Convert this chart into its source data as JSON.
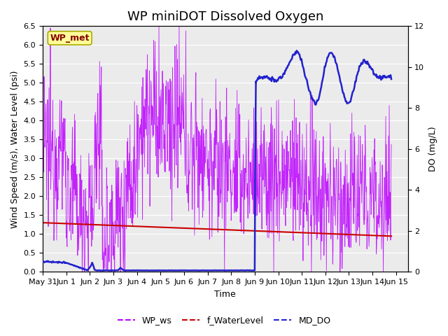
{
  "title": "WP miniDOT Dissolved Oxygen",
  "xlabel": "Time",
  "ylabel_left": "Wind Speed (m/s), Water Level (psi)",
  "ylabel_right": "DO (mg/L)",
  "xlim": [
    0,
    15.5
  ],
  "ylim_left": [
    0,
    6.5
  ],
  "ylim_right": [
    0,
    12
  ],
  "yticks_left": [
    0.0,
    0.5,
    1.0,
    1.5,
    2.0,
    2.5,
    3.0,
    3.5,
    4.0,
    4.5,
    5.0,
    5.5,
    6.0,
    6.5
  ],
  "yticks_right": [
    0,
    2,
    4,
    6,
    8,
    10,
    12
  ],
  "xtick_labels": [
    "May 31",
    "Jun 1",
    "Jun 2",
    "Jun 3",
    "Jun 4",
    "Jun 5",
    "Jun 6",
    "Jun 7",
    "Jun 8",
    "Jun 9",
    "Jun 10",
    "Jun 11",
    "Jun 12",
    "Jun 13",
    "Jun 14",
    "Jun 15"
  ],
  "xtick_positions": [
    0,
    1,
    2,
    3,
    4,
    5,
    6,
    7,
    8,
    9,
    10,
    11,
    12,
    13,
    14,
    15
  ],
  "wp_ws_color": "#BB00FF",
  "f_wl_color": "#CC0000",
  "md_do_color": "#2222CC",
  "background_color": "#EBEBEB",
  "grid_color": "#FFFFFF",
  "annotation_text": "WP_met",
  "annotation_color": "#880000",
  "annotation_bg": "#FFFF99",
  "annotation_edge": "#AAAA00",
  "legend_labels": [
    "WP_ws",
    "f_WaterLevel",
    "MD_DO"
  ],
  "title_fontsize": 13,
  "axis_fontsize": 9,
  "tick_fontsize": 8
}
